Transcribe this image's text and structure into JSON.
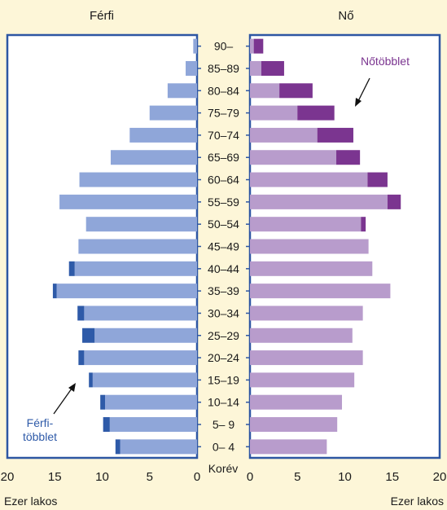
{
  "chart_data": {
    "type": "bar",
    "subtype": "population-pyramid",
    "title": "",
    "panel_labels": {
      "left": "Férfi",
      "right": "Nő"
    },
    "center_axis_label": "Korév",
    "xlabel_left": "Ezer lakos",
    "xlabel_right": "Ezer lakos",
    "xlim": [
      0,
      20
    ],
    "x_ticks": [
      0,
      5,
      10,
      15,
      20
    ],
    "categories": [
      "0– 4",
      "5– 9",
      "10–14",
      "15–19",
      "20–24",
      "25–29",
      "30–34",
      "35–39",
      "40–44",
      "45–49",
      "50–54",
      "55–59",
      "60–64",
      "65–69",
      "70–74",
      "75–79",
      "80–84",
      "85–89",
      "90–"
    ],
    "series": [
      {
        "name": "Férfi",
        "color": "#8fa6d9",
        "surplus_color": "#2e5aa8",
        "values": [
          8.6,
          9.9,
          10.2,
          11.4,
          12.5,
          12.1,
          12.6,
          15.2,
          13.5,
          12.5,
          11.7,
          14.5,
          12.4,
          9.1,
          7.1,
          5.0,
          3.1,
          1.2,
          0.4
        ]
      },
      {
        "name": "Nő",
        "color": "#b89ccc",
        "surplus_color": "#7b3590",
        "values": [
          8.1,
          9.2,
          9.7,
          11.0,
          11.9,
          10.8,
          11.9,
          14.8,
          12.9,
          12.5,
          12.2,
          15.9,
          14.5,
          11.6,
          10.9,
          8.9,
          6.6,
          3.6,
          1.4
        ]
      }
    ],
    "annotations": {
      "female_surplus": "Nőtöbblet",
      "male_surplus_line1": "Férfi-",
      "male_surplus_line2": "többlet"
    },
    "grid": false
  }
}
